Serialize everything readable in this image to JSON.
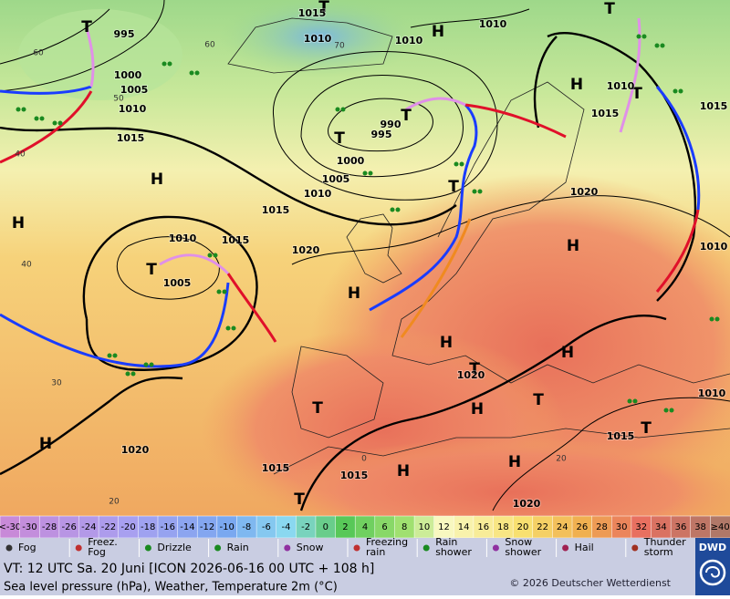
{
  "map": {
    "pressure_centers": [
      "H",
      "H",
      "H",
      "H",
      "H",
      "H",
      "H",
      "H",
      "H",
      "H",
      "H",
      "H",
      "T",
      "T",
      "T",
      "T",
      "T",
      "T",
      "T",
      "T",
      "T",
      "T",
      "T",
      "T",
      "T"
    ],
    "isobar_labels": [
      "1015",
      "1010",
      "1010",
      "1010",
      "995",
      "1000",
      "1005",
      "1010",
      "1015",
      "990",
      "995",
      "1000",
      "1005",
      "1010",
      "1015",
      "1020",
      "1010",
      "1015",
      "1005",
      "1020",
      "1010",
      "1015",
      "1015",
      "1010",
      "1010",
      "1015",
      "1020",
      "1020",
      "1015",
      "1015",
      "1020"
    ],
    "temperature_labels": [
      "60",
      "60",
      "70",
      "50",
      "40",
      "40",
      "30",
      "20",
      "0",
      "20"
    ]
  },
  "legend": {
    "temperature_scale": [
      "<-30",
      "-30",
      "-28",
      "-26",
      "-24",
      "-22",
      "-20",
      "-18",
      "-16",
      "-14",
      "-12",
      "-10",
      "-8",
      "-6",
      "-4",
      "-2",
      "0",
      "2",
      "4",
      "6",
      "8",
      "10",
      "12",
      "14",
      "16",
      "18",
      "20",
      "22",
      "24",
      "26",
      "28",
      "30",
      "32",
      "34",
      "36",
      "38",
      "≥40"
    ],
    "weather": [
      {
        "lines": [
          "Fog"
        ]
      },
      {
        "lines": [
          "Freez.",
          "Fog"
        ]
      },
      {
        "lines": [
          "Drizzle"
        ]
      },
      {
        "lines": [
          "Rain"
        ]
      },
      {
        "lines": [
          "Snow"
        ]
      },
      {
        "lines": [
          "Freezing",
          "rain"
        ]
      },
      {
        "lines": [
          "Rain",
          "shower"
        ]
      },
      {
        "lines": [
          "Snow",
          "shower"
        ]
      },
      {
        "lines": [
          "Hail"
        ]
      },
      {
        "lines": [
          "Thunder",
          "storm"
        ]
      }
    ]
  },
  "footer": {
    "valid_time": "VT: 12 UTC Sa.  20 Juni [ICON 2026-06-16  00 UTC + 108 h]",
    "description": "Sea level pressure (hPa), Weather, Temperature 2m (°C)",
    "copyright": "© 2026 Deutscher Wetterdienst",
    "logo": "DWD"
  }
}
